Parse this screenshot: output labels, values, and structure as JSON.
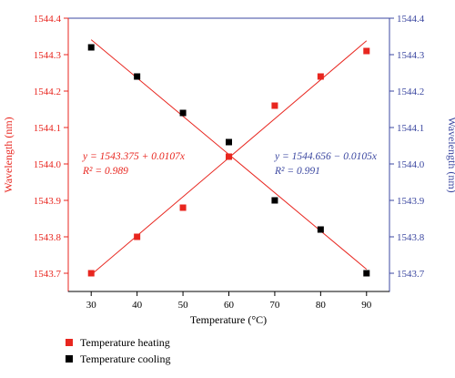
{
  "chart_data": {
    "type": "scatter",
    "xlabel": "Temperature (°C)",
    "ylabel_left": "Wavelength (nm)",
    "ylabel_right": "Wavelength (nm)",
    "xlim": [
      25,
      95
    ],
    "ylim": [
      1543.65,
      1544.4
    ],
    "x_ticks": [
      30,
      40,
      50,
      60,
      70,
      80,
      90
    ],
    "y_ticks": [
      "1543.7",
      "1543.8",
      "1543.9",
      "1544.0",
      "1544.1",
      "1544.2",
      "1544.3",
      "1544.4"
    ],
    "grid": false,
    "legend_position": "bottom-left",
    "series": [
      {
        "name": "Temperature heating",
        "color": "#e8261f",
        "x": [
          30,
          40,
          50,
          60,
          70,
          80,
          90
        ],
        "y": [
          1543.7,
          1543.8,
          1543.88,
          1544.02,
          1544.16,
          1544.24,
          1544.31
        ],
        "fit": {
          "intercept": 1543.375,
          "slope": 0.0107,
          "equation": "y = 1543.375 + 0.0107x",
          "r2": "R² = 0.989",
          "color": "#e8261f"
        }
      },
      {
        "name": "Temperature cooling",
        "color": "#000000",
        "x": [
          30,
          40,
          50,
          60,
          70,
          80,
          90
        ],
        "y": [
          1544.32,
          1544.24,
          1544.14,
          1544.06,
          1543.9,
          1543.82,
          1543.7
        ],
        "fit": {
          "intercept": 1544.656,
          "slope": -0.0105,
          "equation": "y = 1544.656 − 0.0105x",
          "r2": "R² = 0.991",
          "color": "#3b47a0"
        }
      }
    ],
    "colors": {
      "left_axis": "#e8261f",
      "right_axis": "#3b47a0",
      "frame": "#000000"
    }
  }
}
